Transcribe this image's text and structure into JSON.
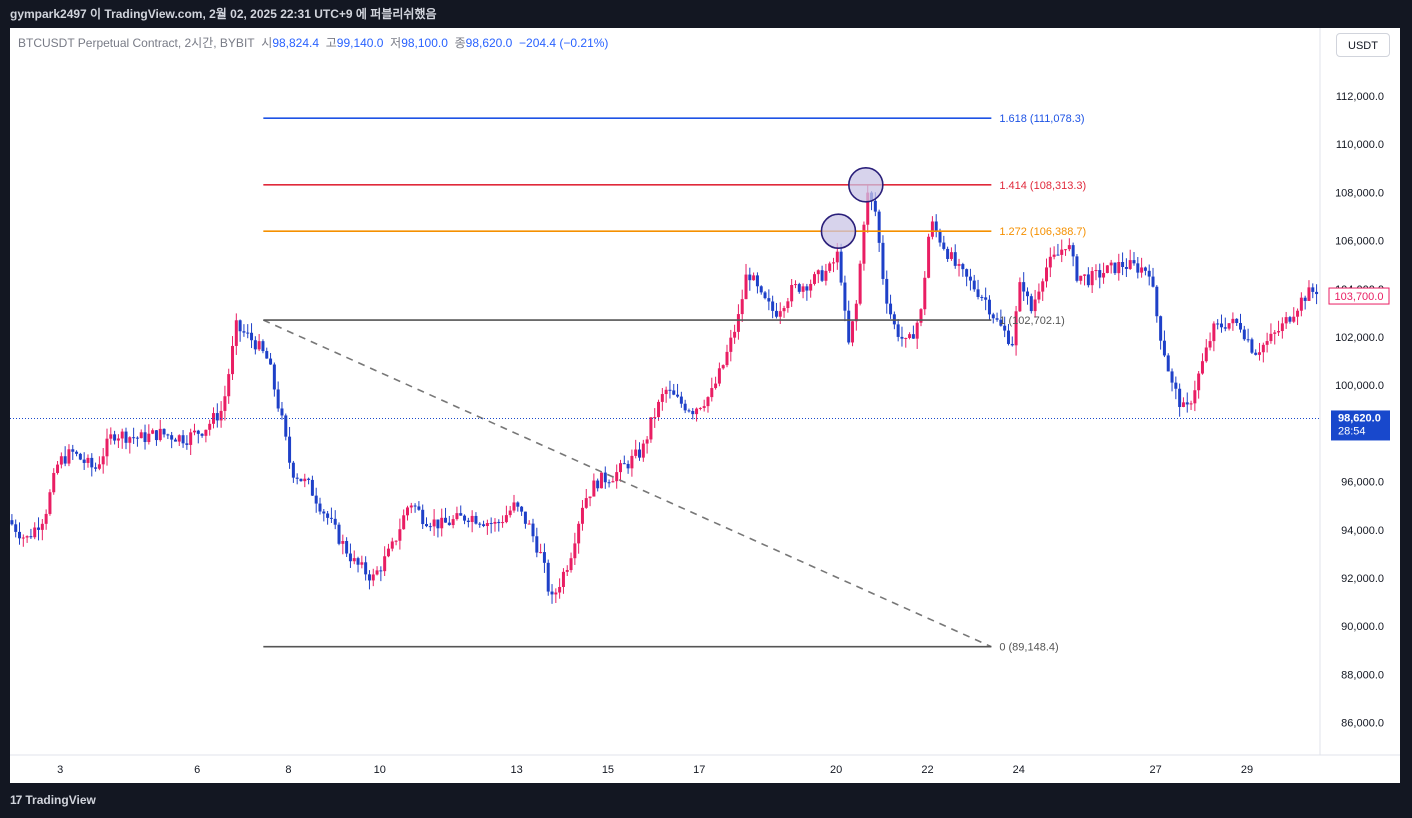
{
  "header": {
    "publish_text": "gympark2497 이 TradingView.com, 2월 02, 2025 22:31 UTC+9 에 퍼블리쉬했음"
  },
  "legend": {
    "symbol": "BTCUSDT Perpetual Contract, 2시간, BYBIT",
    "open_label": "시",
    "open": "98,824.4",
    "high_label": "고",
    "high": "99,140.0",
    "low_label": "저",
    "low": "98,100.0",
    "close_label": "종",
    "close": "98,620.0",
    "change": "−204.4 (−0.21%)"
  },
  "currency": "USDT",
  "footer": {
    "logo_mark": "17",
    "brand": "TradingView"
  },
  "colors": {
    "up": "#e91e63",
    "down": "#1e40c8",
    "fib_1618": "#1e53e5",
    "fib_1414": "#e0293b",
    "fib_1272": "#f59000",
    "fib_base": "#555555",
    "circle_fill": "#c9c4e6",
    "circle_stroke": "#2a1f7a",
    "price_badge": "#1848cc"
  },
  "chart_data": {
    "type": "candlestick",
    "ylim": [
      84600,
      114600
    ],
    "yticks": [
      {
        "v": 86000,
        "label": "86,000.0"
      },
      {
        "v": 88000,
        "label": "88,000.0"
      },
      {
        "v": 90000,
        "label": "90,000.0"
      },
      {
        "v": 92000,
        "label": "92,000.0"
      },
      {
        "v": 94000,
        "label": "94,000.0"
      },
      {
        "v": 96000,
        "label": "96,000.0"
      },
      {
        "v": 98000,
        "label": "98,000.0"
      },
      {
        "v": 100000,
        "label": "100,000.0"
      },
      {
        "v": 102000,
        "label": "102,000.0"
      },
      {
        "v": 104000,
        "label": "104,000.0"
      },
      {
        "v": 106000,
        "label": "106,000.0"
      },
      {
        "v": 108000,
        "label": "108,000.0"
      },
      {
        "v": 110000,
        "label": "110,000.0"
      },
      {
        "v": 112000,
        "label": "112,000.0"
      }
    ],
    "xlim": [
      1.9,
      30.6
    ],
    "xticks": [
      {
        "v": 3,
        "label": "3"
      },
      {
        "v": 6,
        "label": "6"
      },
      {
        "v": 8,
        "label": "8"
      },
      {
        "v": 10,
        "label": "10"
      },
      {
        "v": 13,
        "label": "13"
      },
      {
        "v": 15,
        "label": "15"
      },
      {
        "v": 17,
        "label": "17"
      },
      {
        "v": 20,
        "label": "20"
      },
      {
        "v": 22,
        "label": "22"
      },
      {
        "v": 24,
        "label": "24"
      },
      {
        "v": 27,
        "label": "27"
      },
      {
        "v": 29,
        "label": "29"
      }
    ],
    "price_path": [
      [
        1.9,
        94400
      ],
      [
        2.3,
        93600
      ],
      [
        2.7,
        94600
      ],
      [
        3.0,
        96800
      ],
      [
        3.3,
        97200
      ],
      [
        3.8,
        96500
      ],
      [
        4.2,
        98000
      ],
      [
        4.8,
        97800
      ],
      [
        5.2,
        98000
      ],
      [
        5.8,
        97800
      ],
      [
        6.2,
        98200
      ],
      [
        6.6,
        99000
      ],
      [
        6.9,
        102400
      ],
      [
        7.3,
        101800
      ],
      [
        7.6,
        101000
      ],
      [
        7.9,
        98500
      ],
      [
        8.1,
        96500
      ],
      [
        8.5,
        95800
      ],
      [
        8.9,
        94500
      ],
      [
        9.2,
        93500
      ],
      [
        9.5,
        92600
      ],
      [
        9.9,
        92000
      ],
      [
        10.3,
        93200
      ],
      [
        10.7,
        95200
      ],
      [
        11.0,
        94500
      ],
      [
        11.4,
        94200
      ],
      [
        12.0,
        94600
      ],
      [
        12.6,
        94200
      ],
      [
        13.0,
        95000
      ],
      [
        13.3,
        94200
      ],
      [
        13.6,
        92800
      ],
      [
        13.8,
        91000
      ],
      [
        14.2,
        92800
      ],
      [
        14.5,
        95200
      ],
      [
        14.8,
        96000
      ],
      [
        15.2,
        96300
      ],
      [
        15.8,
        97300
      ],
      [
        16.0,
        98500
      ],
      [
        16.3,
        99800
      ],
      [
        16.6,
        99300
      ],
      [
        16.9,
        99000
      ],
      [
        17.3,
        99600
      ],
      [
        17.6,
        101000
      ],
      [
        17.9,
        102800
      ],
      [
        18.1,
        104800
      ],
      [
        18.4,
        103600
      ],
      [
        18.7,
        103000
      ],
      [
        19.1,
        104000
      ],
      [
        19.5,
        104300
      ],
      [
        19.9,
        104800
      ],
      [
        20.1,
        105500
      ],
      [
        20.3,
        101500
      ],
      [
        20.5,
        103500
      ],
      [
        20.7,
        108000
      ],
      [
        20.9,
        107200
      ],
      [
        21.1,
        104000
      ],
      [
        21.3,
        102500
      ],
      [
        21.6,
        101600
      ],
      [
        21.9,
        103000
      ],
      [
        22.1,
        106800
      ],
      [
        22.4,
        105800
      ],
      [
        22.7,
        104800
      ],
      [
        23.0,
        104200
      ],
      [
        23.3,
        103600
      ],
      [
        23.6,
        102500
      ],
      [
        23.9,
        101800
      ],
      [
        24.1,
        104500
      ],
      [
        24.3,
        103000
      ],
      [
        24.6,
        104800
      ],
      [
        24.9,
        105400
      ],
      [
        25.1,
        106000
      ],
      [
        25.3,
        104600
      ],
      [
        25.6,
        104400
      ],
      [
        25.9,
        104700
      ],
      [
        26.3,
        105000
      ],
      [
        26.6,
        104900
      ],
      [
        26.9,
        104800
      ],
      [
        27.1,
        102500
      ],
      [
        27.4,
        100000
      ],
      [
        27.7,
        98800
      ],
      [
        28.0,
        100500
      ],
      [
        28.3,
        102300
      ],
      [
        28.6,
        102600
      ],
      [
        28.9,
        102500
      ],
      [
        29.2,
        101400
      ],
      [
        29.5,
        101800
      ],
      [
        29.8,
        102400
      ],
      [
        30.1,
        103200
      ],
      [
        30.3,
        103700
      ],
      [
        30.6,
        104000
      ]
    ],
    "fib": {
      "x_start": 7.45,
      "x_end": 23.4,
      "levels": [
        {
          "ratio": "1.618",
          "price": 111078.3,
          "label": "1.618 (111,078.3)"
        },
        {
          "ratio": "1.414",
          "price": 108313.3,
          "label": "1.414 (108,313.3)"
        },
        {
          "ratio": "1.272",
          "price": 106388.7,
          "label": "1.272 (106,388.7)"
        },
        {
          "ratio": "1",
          "price": 102702.1,
          "label": "1 (102,702.1)"
        },
        {
          "ratio": "0",
          "price": 89148.4,
          "label": "0 (89,148.4)"
        }
      ]
    },
    "trend_line": {
      "from": [
        7.45,
        102702.1
      ],
      "to": [
        23.4,
        89148.4
      ]
    },
    "highlight_circles": [
      {
        "x": 20.05,
        "y": 106388.7
      },
      {
        "x": 20.65,
        "y": 108313.3
      }
    ],
    "last_price": {
      "value": 98620,
      "label": "98,620.0",
      "countdown": "28:54"
    },
    "marker_price": {
      "value": 103700,
      "label": "103,700.0"
    },
    "partial_tick": {
      "v": 104000,
      "label": "104,000.0"
    }
  }
}
